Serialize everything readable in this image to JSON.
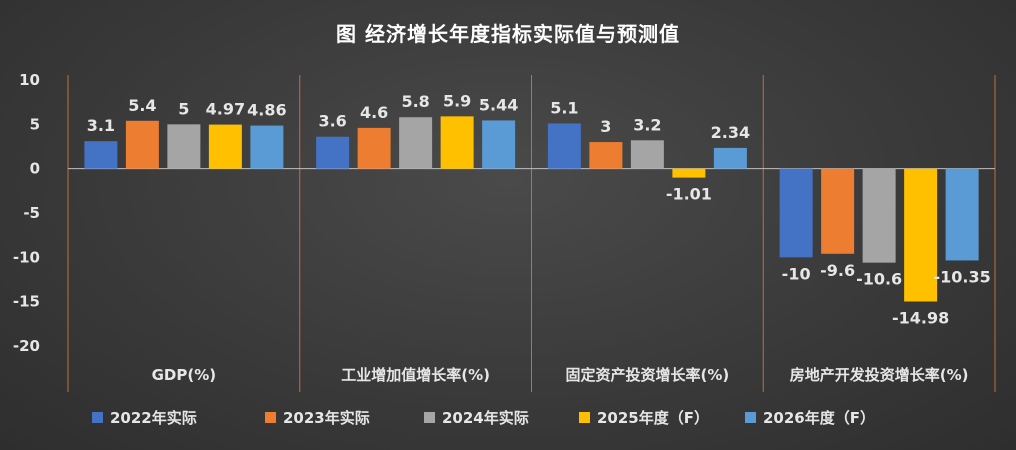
{
  "chart_data": {
    "type": "bar",
    "title": "图  经济增长年度指标实际值与预测值",
    "categories": [
      "GDP(%)",
      "工业增加值增长率(%)",
      "固定资产投资增长率(%)",
      "房地产开发投资增长率(%)"
    ],
    "series": [
      {
        "name": "2022年实际",
        "values": [
          3.1,
          3.6,
          5.1,
          -10
        ],
        "labels": [
          "3.1",
          "3.6",
          "5.1",
          "-10"
        ],
        "color": "#4472C4"
      },
      {
        "name": "2023年实际",
        "values": [
          5.4,
          4.6,
          3,
          -9.6
        ],
        "labels": [
          "5.4",
          "4.6",
          "3",
          "-9.6"
        ],
        "color": "#ED7D31"
      },
      {
        "name": "2024年实际",
        "values": [
          5,
          5.8,
          3.2,
          -10.6
        ],
        "labels": [
          "5",
          "5.8",
          "3.2",
          "-10.6"
        ],
        "color": "#A5A5A5"
      },
      {
        "name": "2025年度（F）",
        "values": [
          4.97,
          5.9,
          -1.01,
          -14.98
        ],
        "labels": [
          "4.97",
          "5.9",
          "-1.01",
          "-14.98"
        ],
        "color": "#FFC000"
      },
      {
        "name": "2026年度（F）",
        "values": [
          4.86,
          5.44,
          2.34,
          -10.35
        ],
        "labels": [
          "4.86",
          "5.44",
          "2.34",
          "-10.35"
        ],
        "color": "#5B9BD5"
      }
    ],
    "ylim": [
      -20,
      10
    ],
    "yticks": [
      "10",
      "5",
      "0",
      "-5",
      "-10",
      "-15",
      "-20"
    ],
    "xlabel": "",
    "ylabel": "",
    "grid": false,
    "category_separators": true,
    "legend_position": "bottom",
    "colors": {
      "background": "#3a3a3a",
      "text": "#e6e6e6",
      "separator": "#c0703a",
      "axis": "#bfbfbf"
    }
  }
}
